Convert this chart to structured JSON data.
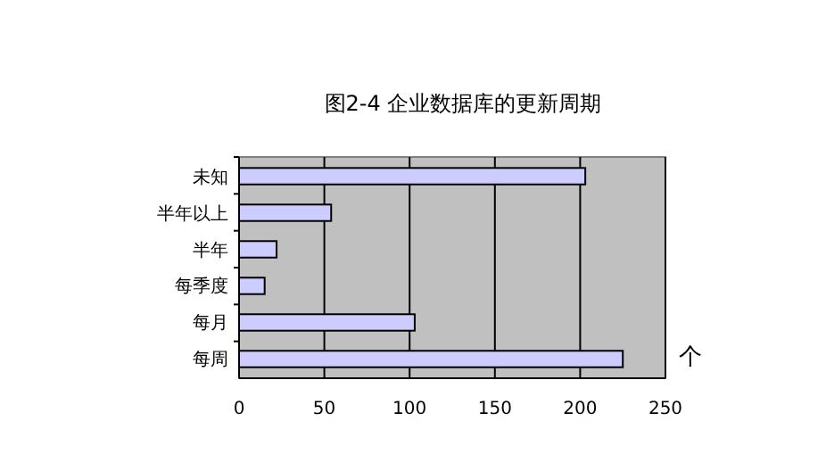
{
  "chart_data": {
    "type": "bar",
    "orientation": "horizontal",
    "title": "图2-4    企业数据库的更新周期",
    "xlabel": "个",
    "categories": [
      "未知",
      "半年以上",
      "半年",
      "每季度",
      "每月",
      "每周"
    ],
    "values": [
      203,
      54,
      22,
      15,
      103,
      225
    ],
    "color": "#ccccff",
    "xlim": [
      0,
      250
    ],
    "xticks": [
      0,
      50,
      100,
      150,
      200,
      250
    ],
    "grid": "x"
  }
}
